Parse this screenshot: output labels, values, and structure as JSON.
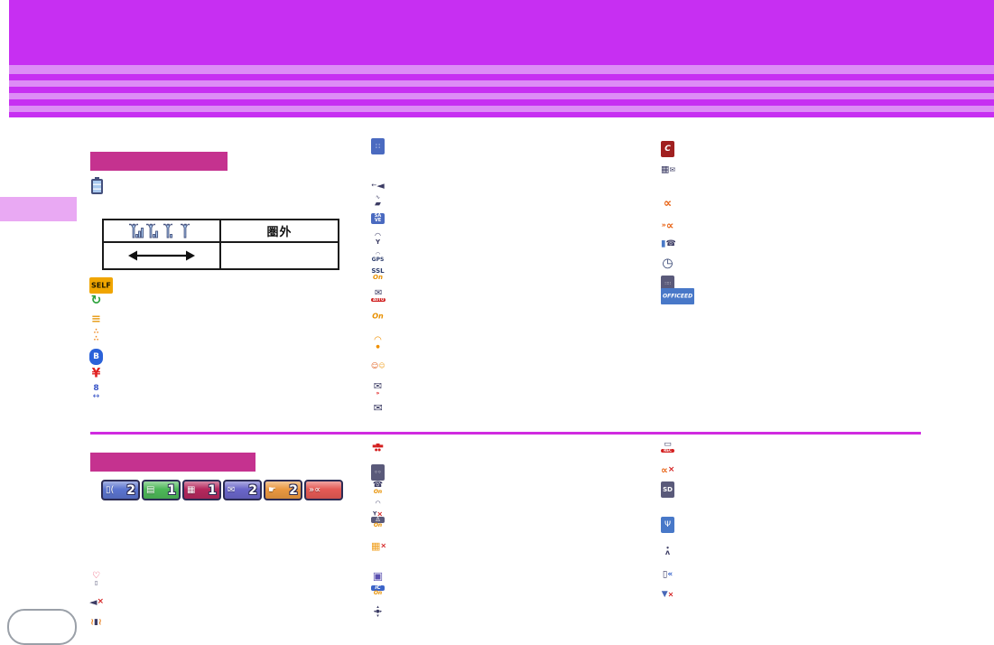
{
  "colors": {
    "banner_magenta": "#c72ff2",
    "stripe_light": "#dd8df6",
    "section_header_pink": "#c5328f",
    "divider_magenta": "#d02be0",
    "side_tab_pink": "#e9a9f3",
    "icon_navy": "#3c3c64",
    "icon_orange": "#e88a10",
    "icon_red": "#d42020"
  },
  "table": {
    "signal_levels": [
      3,
      2,
      1,
      0
    ],
    "out_of_area_label": "圏外"
  },
  "icons": {
    "self_mode": {
      "bg": "#f0a500",
      "r": 2,
      "parts": [
        {
          "t": "SELF",
          "c": "#201a00",
          "s": 8,
          "bold": 1
        }
      ]
    },
    "sync": {
      "parts": [
        {
          "t": "↻",
          "c": "#2aa13a",
          "s": 14,
          "bold": 1
        }
      ]
    },
    "coin_level": {
      "parts": [
        {
          "t": "≡",
          "c": "#e8a020",
          "s": 13,
          "bold": 1
        }
      ]
    },
    "pedometer_steps": {
      "parts": [
        {
          "t": "∴",
          "c": "#f08820",
          "s": 8,
          "blk": 1,
          "bold": 1
        },
        {
          "t": "∴",
          "c": "#f08820",
          "s": 8,
          "blk": 1,
          "bold": 1
        }
      ]
    },
    "bluetooth": {
      "bg": "#2b62d9",
      "r": 7,
      "parts": [
        {
          "t": "B",
          "c": "#fff",
          "s": 9,
          "bold": 1
        }
      ]
    },
    "yen_mark": {
      "parts": [
        {
          "t": "¥",
          "c": "#e02222",
          "s": 14,
          "bold": 1
        }
      ]
    },
    "auto_switch": {
      "parts": [
        {
          "t": "8",
          "c": "#3a56c8",
          "s": 9,
          "bold": 1,
          "blk": 1
        },
        {
          "t": "↔",
          "c": "#3a56c8",
          "s": 9,
          "blk": 1
        }
      ]
    },
    "external_device": {
      "bg": "#4a6ac0",
      "r": 2,
      "parts": [
        {
          "t": "∷",
          "c": "#fff",
          "s": 8
        }
      ]
    },
    "speaker_output": {
      "parts": [
        {
          "t": "←",
          "c": "#3c3c64",
          "s": 7
        },
        {
          "t": "◄",
          "c": "#3c3c64",
          "s": 11
        }
      ]
    },
    "folder_wave": {
      "parts": [
        {
          "t": "∿",
          "c": "#3c3c64",
          "s": 6,
          "blk": 1
        },
        {
          "t": "▰",
          "c": "#3c3c64",
          "s": 9,
          "blk": 1
        }
      ]
    },
    "save": {
      "bg": "#4a6ac0",
      "r": 2,
      "parts": [
        {
          "t": "SA",
          "c": "#fff",
          "s": 5,
          "blk": 1,
          "bold": 1
        },
        {
          "t": "VE",
          "c": "#fff",
          "s": 5,
          "blk": 1,
          "bold": 1
        }
      ]
    },
    "gps_antenna": {
      "parts": [
        {
          "t": "◠",
          "c": "#3c3c64",
          "s": 8,
          "blk": 1
        },
        {
          "t": "Y",
          "c": "#3c3c64",
          "s": 7,
          "bold": 1,
          "blk": 1
        }
      ]
    },
    "gps_text": {
      "parts": [
        {
          "t": "◠",
          "c": "#3c3c64",
          "s": 6,
          "blk": 1
        },
        {
          "t": "GPS",
          "c": "#2c3c6c",
          "s": 6,
          "bold": 1,
          "blk": 1
        }
      ]
    },
    "ssl": {
      "parts": [
        {
          "t": "SSL",
          "c": "#2c3c6c",
          "s": 7,
          "bold": 1,
          "blk": 1
        },
        {
          "t": "On",
          "c": "#e89000",
          "s": 7,
          "bold": 1,
          "it": 1,
          "blk": 1
        }
      ]
    },
    "auto_mail": {
      "parts": [
        {
          "t": "✉",
          "c": "#3c3c64",
          "s": 10,
          "blk": 1
        },
        {
          "t": "AUTO",
          "c": "#fff",
          "bg": "#d02020",
          "s": 4,
          "bold": 1,
          "blk": 1
        }
      ]
    },
    "key_on": {
      "parts": [
        {
          "t": "On",
          "c": "#e89000",
          "s": 8,
          "bold": 1,
          "it": 1
        }
      ]
    },
    "wifi": {
      "parts": [
        {
          "t": "◠",
          "c": "#f09000",
          "s": 10,
          "blk": 1,
          "bold": 1
        },
        {
          "t": "●",
          "c": "#f09000",
          "s": 5,
          "blk": 1
        }
      ]
    },
    "link_faces": {
      "parts": [
        {
          "t": "☺",
          "c": "#e06020",
          "s": 8
        },
        {
          "t": "☺",
          "c": "#f0a020",
          "s": 7
        }
      ]
    },
    "mail_arrows": {
      "parts": [
        {
          "t": "✉",
          "c": "#3c3c64",
          "s": 11,
          "blk": 1
        },
        {
          "t": "»",
          "c": "#e02222",
          "s": 6,
          "bold": 1,
          "blk": 1
        }
      ]
    },
    "mail": {
      "parts": [
        {
          "t": "✉",
          "c": "#3c3c64",
          "s": 12
        }
      ]
    },
    "i_channel": {
      "bg": "#a02020",
      "r": 2,
      "parts": [
        {
          "t": "C",
          "c": "#fff",
          "s": 9,
          "bold": 1,
          "it": 1
        }
      ]
    },
    "fax_building": {
      "parts": [
        {
          "t": "▦",
          "c": "#3c3c64",
          "s": 10
        },
        {
          "t": "✉",
          "c": "#3c3c64",
          "s": 8
        }
      ]
    },
    "record_message": {
      "parts": [
        {
          "t": "∝",
          "c": "#e86010",
          "s": 13,
          "bold": 1
        }
      ]
    },
    "record_play": {
      "parts": [
        {
          "t": "»",
          "c": "#e86010",
          "s": 8,
          "bold": 1
        },
        {
          "t": "∝",
          "c": "#e86010",
          "s": 12,
          "bold": 1
        }
      ]
    },
    "battery_phone": {
      "parts": [
        {
          "t": "▮",
          "c": "#4a7ac8",
          "s": 10
        },
        {
          "t": "☎",
          "c": "#3c3c64",
          "s": 9
        }
      ]
    },
    "clock": {
      "parts": [
        {
          "t": "◷",
          "c": "#2c3c6c",
          "s": 14,
          "bold": 1
        }
      ]
    },
    "keyboard": {
      "bg": "#5a5a7a",
      "r": 2,
      "parts": [
        {
          "t": "∷∷",
          "c": "#fff",
          "s": 5
        }
      ]
    },
    "officeed": {
      "bg": "#4878c8",
      "r": 1,
      "parts": [
        {
          "t": "OFFICEED",
          "c": "#fff",
          "s": 6,
          "bold": 1,
          "it": 1
        }
      ]
    },
    "drive_mode": {
      "parts": [
        {
          "t": "▄▆▄",
          "c": "#d42020",
          "s": 5,
          "blk": 1
        },
        {
          "t": "●●",
          "c": "#d42020",
          "s": 4,
          "blk": 1
        }
      ]
    },
    "answer_machine": {
      "bg": "#5a5a7a",
      "r": 2,
      "parts": [
        {
          "t": "◦◦",
          "c": "#fff",
          "s": 6,
          "bold": 1
        }
      ]
    },
    "dial_lock": {
      "parts": [
        {
          "t": "☎",
          "c": "#3c3c64",
          "s": 9,
          "blk": 1
        },
        {
          "t": "On",
          "c": "#e89000",
          "s": 6,
          "bold": 1,
          "it": 1,
          "blk": 1
        }
      ]
    },
    "gps_off": {
      "parts": [
        {
          "t": "◠",
          "c": "#3c3c64",
          "s": 7,
          "blk": 1
        },
        {
          "t": "Y",
          "c": "#3c3c64",
          "s": 6,
          "bold": 1
        },
        {
          "t": "×",
          "c": "#d42020",
          "s": 8,
          "bold": 1
        }
      ]
    },
    "personal_lock": {
      "parts": [
        {
          "t": "♙",
          "c": "#fff",
          "bg": "#5a5a7a",
          "s": 7,
          "blk": 1
        },
        {
          "t": "On",
          "c": "#e89000",
          "s": 6,
          "bold": 1,
          "it": 1,
          "blk": 1
        }
      ]
    },
    "keypad_lock": {
      "parts": [
        {
          "t": "▦",
          "c": "#f0a020",
          "s": 11
        },
        {
          "t": "×",
          "c": "#d42020",
          "s": 8,
          "bold": 1
        }
      ]
    },
    "memo": {
      "parts": [
        {
          "t": "▣",
          "c": "#5a50b0",
          "s": 12
        }
      ]
    },
    "ic_card_lock": {
      "parts": [
        {
          "t": "iC",
          "c": "#fff",
          "bg": "#3c64c8",
          "s": 6,
          "bold": 1,
          "it": 1,
          "blk": 1
        },
        {
          "t": "On",
          "c": "#e89000",
          "s": 6,
          "bold": 1,
          "it": 1,
          "blk": 1
        }
      ]
    },
    "multi_cursor": {
      "parts": [
        {
          "t": "▴",
          "c": "#3c3c64",
          "s": 5,
          "blk": 1
        },
        {
          "t": "◂●▸",
          "c": "#3c3c64",
          "s": 5,
          "blk": 1
        },
        {
          "t": "▾",
          "c": "#3c3c64",
          "s": 5,
          "blk": 1
        }
      ]
    },
    "video_rec": {
      "parts": [
        {
          "t": "▭",
          "c": "#3c3c64",
          "s": 9,
          "blk": 1
        },
        {
          "t": "REC",
          "c": "#fff",
          "bg": "#d42020",
          "s": 4,
          "bold": 1,
          "blk": 1
        }
      ]
    },
    "record_off": {
      "parts": [
        {
          "t": "∝",
          "c": "#e86010",
          "s": 11,
          "bold": 1
        },
        {
          "t": "×",
          "c": "#d42020",
          "s": 9,
          "bold": 1
        }
      ]
    },
    "sd_card": {
      "bg": "#5a5a7a",
      "r": 2,
      "parts": [
        {
          "t": "SD",
          "c": "#fff",
          "s": 7,
          "bold": 1
        }
      ]
    },
    "usb_mode": {
      "bg": "#4878c8",
      "r": 2,
      "parts": [
        {
          "t": "Ψ",
          "c": "#fff",
          "s": 9
        }
      ]
    },
    "pedometer_person": {
      "parts": [
        {
          "t": "●",
          "c": "#3c3c64",
          "s": 3,
          "blk": 1
        },
        {
          "t": "ʌ",
          "c": "#3c3c64",
          "s": 8,
          "bold": 1,
          "blk": 1
        }
      ]
    },
    "incoming_restrict": {
      "parts": [
        {
          "t": "▯",
          "c": "#3c3c64",
          "s": 10
        },
        {
          "t": "«",
          "c": "#2858c8",
          "s": 9,
          "bold": 1
        }
      ]
    },
    "security_scan": {
      "parts": [
        {
          "t": "▼",
          "c": "#4868b8",
          "s": 9
        },
        {
          "t": "×",
          "c": "#d42020",
          "s": 8,
          "bold": 1
        }
      ]
    },
    "phone_heart": {
      "parts": [
        {
          "t": "♡",
          "c": "#e8385a",
          "s": 10,
          "bold": 1,
          "blk": 1
        },
        {
          "t": "▯",
          "c": "#3c3c64",
          "s": 6,
          "blk": 1
        }
      ]
    },
    "mute": {
      "parts": [
        {
          "t": "◄",
          "c": "#3c3c64",
          "s": 11
        },
        {
          "t": "×",
          "c": "#d42020",
          "s": 9,
          "bold": 1
        }
      ]
    },
    "vibrate": {
      "parts": [
        {
          "t": "≀",
          "c": "#e88020",
          "s": 10,
          "bold": 1
        },
        {
          "t": "▮",
          "c": "#3c3c64",
          "s": 9
        },
        {
          "t": "≀",
          "c": "#e88020",
          "s": 10,
          "bold": 1
        }
      ]
    }
  },
  "status_badges": [
    {
      "name": "missed-call-badge",
      "bg": "#5b74cf",
      "icon": "▯(",
      "count": "2"
    },
    {
      "name": "record-message-badge",
      "bg": "#4db858",
      "icon": "▤",
      "count": "1"
    },
    {
      "name": "fax-message-badge",
      "bg": "#b5285d",
      "icon": "▦",
      "count": "1"
    },
    {
      "name": "unread-mail-badge",
      "bg": "#6a66c9",
      "icon": "✉",
      "count": "2"
    },
    {
      "name": "message-memo-badge",
      "bg": "#eb9840",
      "icon": "☛",
      "count": "2"
    },
    {
      "name": "record-off-badge",
      "bg": "#e55a55",
      "icon": "»∝",
      "count": ""
    }
  ]
}
